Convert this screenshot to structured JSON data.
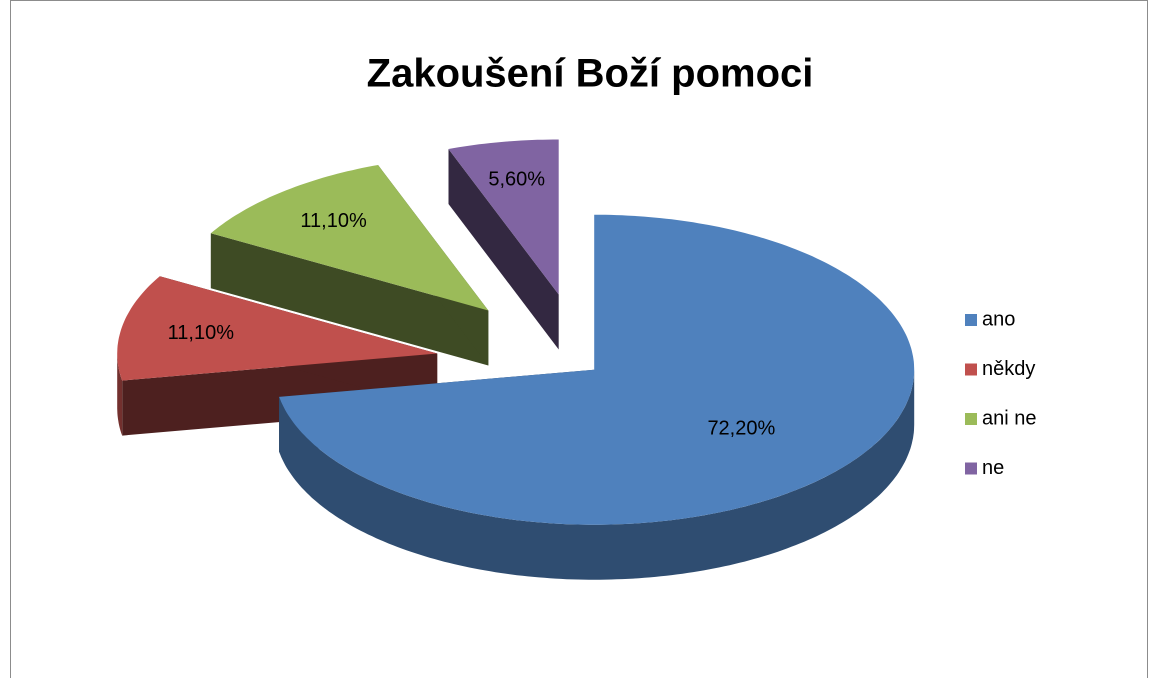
{
  "chart_data": {
    "type": "pie3d",
    "title": "Zakoušení Boží pomoci",
    "categories": [
      "ano",
      "někdy",
      "ani ne",
      "ne"
    ],
    "values": [
      72.2,
      11.1,
      11.1,
      5.6
    ],
    "value_labels": [
      "72,20%",
      "11,10%",
      "11,10%",
      "5,60%"
    ],
    "colors": [
      "#4f81bd",
      "#c0504d",
      "#9bbb59",
      "#8064a2"
    ],
    "legend": "right"
  }
}
